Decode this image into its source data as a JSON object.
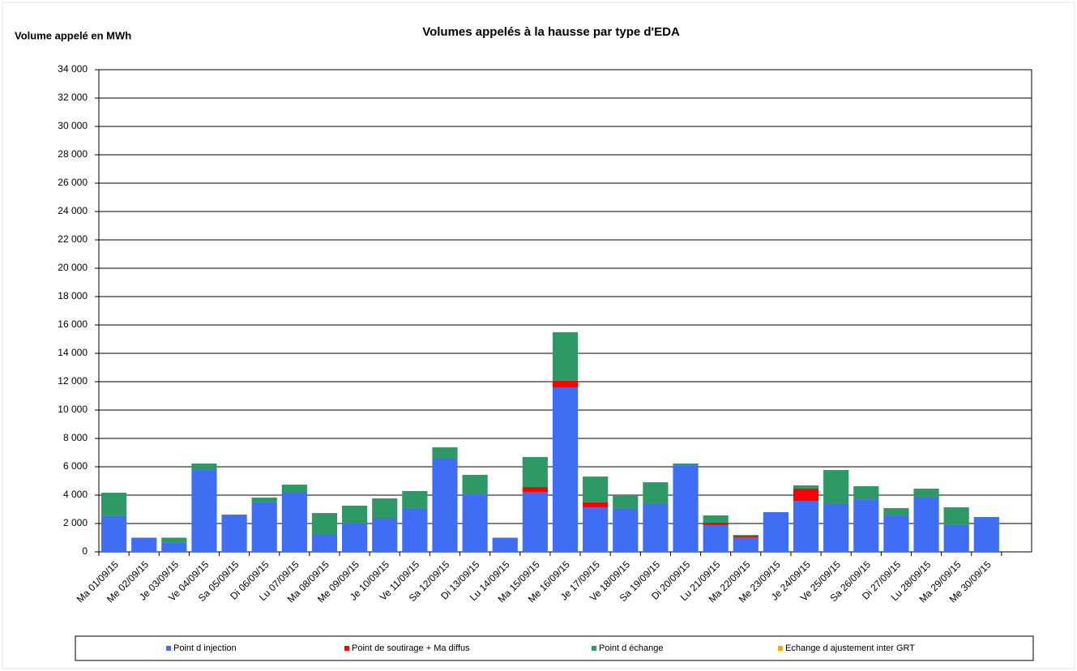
{
  "chart_data": {
    "type": "stacked_bar",
    "title": "Volumes appelés à la hausse par type d'EDA",
    "y_label": "Volume appelé en MWh",
    "categories": [
      "Ma 01/09/15",
      "Me 02/09/15",
      "Je 03/09/15",
      "Ve 04/09/15",
      "Sa 05/09/15",
      "Di 06/09/15",
      "Lu 07/09/15",
      "Ma 08/09/15",
      "Me 09/09/15",
      "Je 10/09/15",
      "Ve 11/09/15",
      "Sa 12/09/15",
      "Di 13/09/15",
      "Lu 14/09/15",
      "Ma 15/09/15",
      "Me 16/09/15",
      "Je 17/09/15",
      "Ve 18/09/15",
      "Sa 19/09/15",
      "Di 20/09/15",
      "Lu 21/09/15",
      "Ma 22/09/15",
      "Me 23/09/15",
      "Je 24/09/15",
      "Ve 25/09/15",
      "Sa 26/09/15",
      "Di 27/09/15",
      "Lu 28/09/15",
      "Ma 29/09/15",
      "Me 30/09/15",
      null
    ],
    "series": [
      {
        "name": "Point d injection",
        "color": "#3f6ef5",
        "values": [
          2550,
          1000,
          650,
          5770,
          2630,
          3490,
          4230,
          1260,
          2000,
          2400,
          3090,
          6630,
          4110,
          1000,
          4230,
          11600,
          3140,
          3090,
          3370,
          6110,
          1890,
          1030,
          2800,
          3600,
          3370,
          3710,
          2570,
          3830,
          1890,
          2460,
          null
        ]
      },
      {
        "name": "Point de soutirage + Ma diffus",
        "color": "#ff0000",
        "values": [
          0,
          0,
          0,
          0,
          0,
          0,
          0,
          0,
          0,
          0,
          0,
          0,
          0,
          0,
          340,
          460,
          350,
          0,
          0,
          0,
          170,
          110,
          0,
          860,
          0,
          0,
          0,
          0,
          0,
          0,
          null
        ]
      },
      {
        "name": "Point d échange",
        "color": "#2e9964",
        "values": [
          1620,
          0,
          350,
          460,
          0,
          340,
          510,
          1480,
          1260,
          1370,
          1200,
          740,
          1320,
          0,
          2120,
          3430,
          1820,
          910,
          1540,
          120,
          510,
          50,
          0,
          230,
          2400,
          920,
          520,
          630,
          1250,
          0,
          null
        ]
      },
      {
        "name": "Echange d ajustement inter GRT",
        "color": "#ffa500",
        "values": [
          0,
          0,
          0,
          0,
          0,
          0,
          0,
          0,
          0,
          0,
          0,
          0,
          0,
          0,
          0,
          0,
          0,
          0,
          0,
          0,
          0,
          0,
          0,
          0,
          0,
          0,
          0,
          0,
          0,
          0,
          null
        ]
      }
    ],
    "ylim": [
      0,
      34000
    ],
    "yticks": [
      {
        "value": 0,
        "label": "0"
      },
      {
        "value": 2000,
        "label": "2 000"
      },
      {
        "value": 4000,
        "label": "4 000"
      },
      {
        "value": 6000,
        "label": "6 000"
      },
      {
        "value": 8000,
        "label": "8 000"
      },
      {
        "value": 10000,
        "label": "10 000"
      },
      {
        "value": 12000,
        "label": "12 000"
      },
      {
        "value": 14000,
        "label": "14 000"
      },
      {
        "value": 16000,
        "label": "16 000"
      },
      {
        "value": 18000,
        "label": "18 000"
      },
      {
        "value": 20000,
        "label": "20 000"
      },
      {
        "value": 22000,
        "label": "22 000"
      },
      {
        "value": 24000,
        "label": "24 000"
      },
      {
        "value": 26000,
        "label": "26 000"
      },
      {
        "value": 28000,
        "label": "28 000"
      },
      {
        "value": 30000,
        "label": "30 000"
      },
      {
        "value": 32000,
        "label": "32 000"
      },
      {
        "value": 34000,
        "label": "34 000"
      }
    ],
    "grid": true,
    "legend": "bottom"
  }
}
